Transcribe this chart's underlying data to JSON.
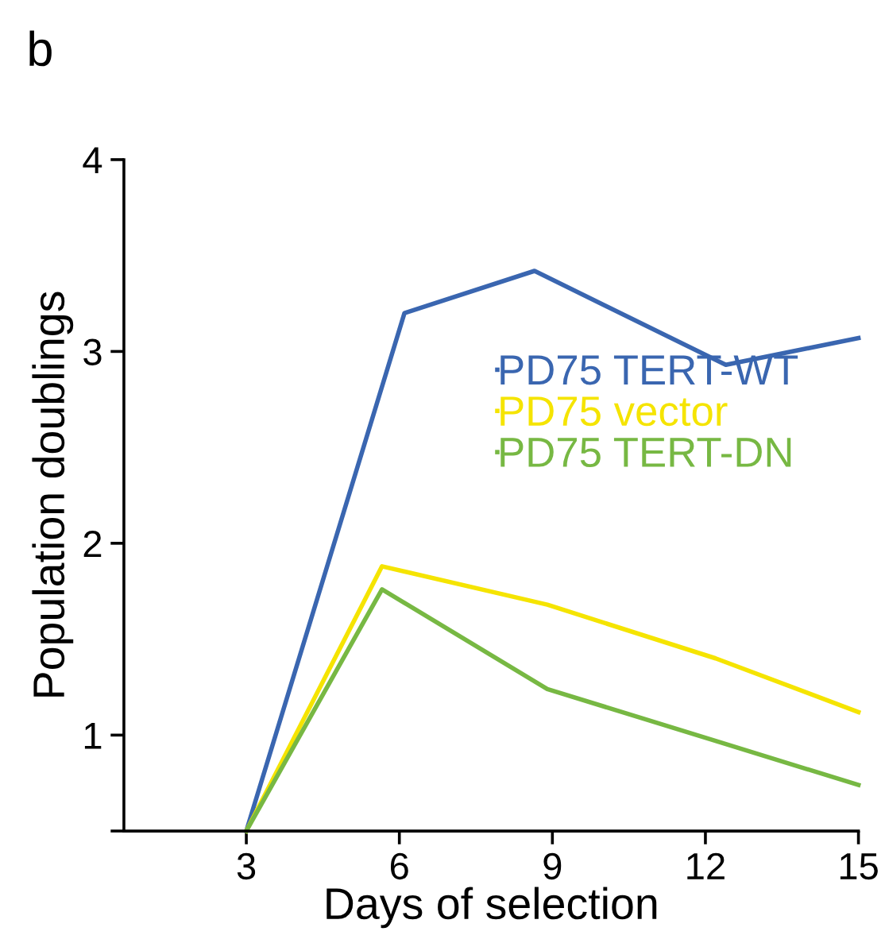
{
  "chart_data": {
    "type": "line",
    "xlabel": "Days of selection",
    "ylabel": "Population doublings",
    "annotations": [
      "b"
    ],
    "xlim": [
      0.6,
      15
    ],
    "xticks": [
      3,
      6,
      9,
      12,
      15
    ],
    "ylim": [
      0.5,
      4
    ],
    "yticks": [
      {
        "value": 0.5,
        "label": null
      },
      1,
      2,
      3,
      4
    ],
    "grid": false,
    "legend": "center right",
    "marker": "none",
    "line_style": "solid",
    "series": [
      {
        "name": "PD75 TERT-WT",
        "color": "#3a66b0",
        "x": [
          3,
          6.1,
          8.65,
          12.4,
          15
        ],
        "values": [
          0.5,
          3.2,
          3.42,
          2.93,
          3.07
        ]
      },
      {
        "name": "PD75 vector",
        "color": "#f5e400",
        "x": [
          3,
          5.66,
          8.9,
          12.2,
          15
        ],
        "values": [
          0.5,
          1.88,
          1.68,
          1.4,
          1.12
        ]
      },
      {
        "name": "PD75 TERT-DN",
        "color": "#77b843",
        "x": [
          3,
          5.66,
          8.9,
          12.2,
          15
        ],
        "values": [
          0.5,
          1.76,
          1.24,
          0.97,
          0.74
        ]
      }
    ]
  }
}
